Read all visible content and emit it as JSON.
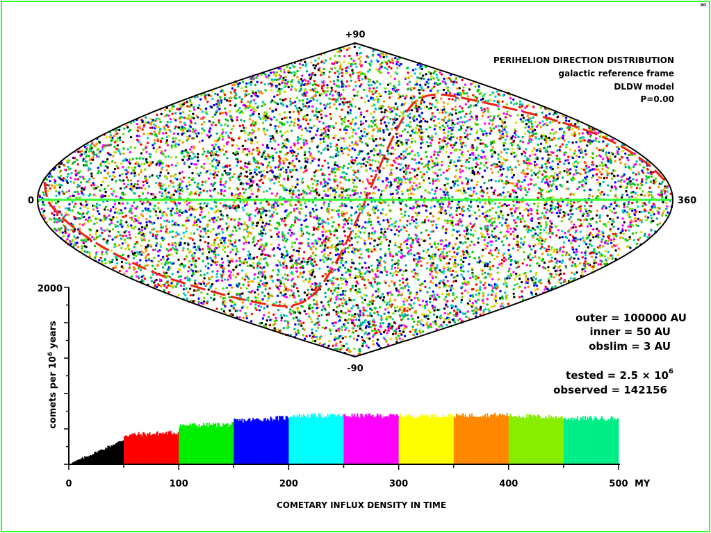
{
  "corner_mark": "RO",
  "map": {
    "top_label": "+90",
    "bottom_label": "-90",
    "left_label": "0",
    "right_label": "360",
    "title_lines": [
      "PERIHELION DIRECTION DISTRIBUTION",
      "galactic reference frame",
      "DLDW model",
      "P=0.00"
    ],
    "equator_color": "#33ff33",
    "curve_color": "#ee2211",
    "dot_colors": [
      "#ff0000",
      "#00cc00",
      "#0000ff",
      "#00cccc",
      "#ff00ff",
      "#dddd00",
      "#ff8800",
      "#66dd00",
      "#000000",
      "#00aa88"
    ]
  },
  "params": {
    "outer": "outer  =  100000 AU",
    "inner": "inner  =  50 AU",
    "obslim": "obslim  =  3 AU",
    "tested_prefix": "tested  =  2.5 × 10",
    "tested_exp": "6",
    "observed": "observed  =  142156"
  },
  "chart_data": {
    "type": "bar",
    "title": "COMETARY INFLUX DENSITY IN TIME",
    "xlabel": "COMETARY INFLUX DENSITY IN TIME",
    "ylabel": "comets per 10^6 years",
    "ylabel_parts": [
      "comets per 10",
      "6",
      " years"
    ],
    "x_unit": "MY",
    "xlim": [
      0,
      500
    ],
    "ylim": [
      0,
      2000
    ],
    "x_ticks": [
      "0",
      "100",
      "200",
      "300",
      "400",
      "500"
    ],
    "y_ticks": [
      "2000"
    ],
    "segments": [
      {
        "range": [
          0,
          50
        ],
        "color": "#000000",
        "start": 0,
        "end": 280
      },
      {
        "range": [
          50,
          100
        ],
        "color": "#ff0000",
        "start": 330,
        "end": 360
      },
      {
        "range": [
          100,
          150
        ],
        "color": "#00ee00",
        "start": 440,
        "end": 450
      },
      {
        "range": [
          150,
          200
        ],
        "color": "#0000ff",
        "start": 490,
        "end": 530
      },
      {
        "range": [
          200,
          250
        ],
        "color": "#00ffff",
        "start": 550,
        "end": 550
      },
      {
        "range": [
          250,
          300
        ],
        "color": "#ff00ff",
        "start": 550,
        "end": 550
      },
      {
        "range": [
          300,
          350
        ],
        "color": "#ffff00",
        "start": 550,
        "end": 550
      },
      {
        "range": [
          350,
          400
        ],
        "color": "#ff8800",
        "start": 550,
        "end": 560
      },
      {
        "range": [
          400,
          450
        ],
        "color": "#88ee00",
        "start": 550,
        "end": 530
      },
      {
        "range": [
          450,
          500
        ],
        "color": "#00ee88",
        "start": 520,
        "end": 520
      }
    ]
  }
}
